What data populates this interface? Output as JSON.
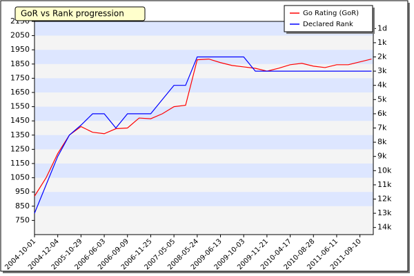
{
  "chart_data": {
    "type": "line",
    "title": "GoR vs Rank progression",
    "categories": [
      "2004-10-01",
      null,
      "2004-12-04",
      null,
      "2005-10-29",
      null,
      "2006-06-03",
      null,
      "2006-09-09",
      null,
      "2006-11-25",
      null,
      "2007-05-05",
      null,
      "2008-05-24",
      null,
      "2009-06-13",
      null,
      "2009-10-03",
      null,
      "2009-11-21",
      null,
      "2010-04-17",
      null,
      "2010-08-28",
      null,
      "2011-06-11",
      null,
      "2011-09-10",
      null
    ],
    "series": [
      {
        "name": "Go Rating (GoR)",
        "color": "#ff0000",
        "values": [
          920,
          1050,
          1220,
          1350,
          1410,
          1370,
          1360,
          1395,
          1400,
          1470,
          1465,
          1500,
          1550,
          1560,
          1880,
          1885,
          1860,
          1840,
          1830,
          1820,
          1800,
          1820,
          1845,
          1855,
          1835,
          1825,
          1845,
          1845,
          1865,
          1885
        ]
      },
      {
        "name": "Declared Rank",
        "color": "#0000ff",
        "axis": "y2",
        "values": [
          800,
          1000,
          1200,
          1350,
          1420,
          1500,
          1500,
          1400,
          1500,
          1500,
          1500,
          1600,
          1700,
          1700,
          1900,
          1900,
          1900,
          1900,
          1900,
          1800,
          1800,
          1800,
          1800,
          1800,
          1800,
          1800,
          1800,
          1800,
          1800,
          1800
        ]
      }
    ],
    "ylim": [
      650,
      2150
    ],
    "yticks": [
      750,
      850,
      950,
      1050,
      1150,
      1250,
      1350,
      1450,
      1550,
      1650,
      1750,
      1850,
      1950,
      2050,
      2150
    ],
    "y2lim": [
      650,
      2150
    ],
    "y2ticks": [
      {
        "value": 2100,
        "label": "1d"
      },
      {
        "value": 2000,
        "label": "1k"
      },
      {
        "value": 1900,
        "label": "2k"
      },
      {
        "value": 1800,
        "label": "3k"
      },
      {
        "value": 1700,
        "label": "4k"
      },
      {
        "value": 1600,
        "label": "5k"
      },
      {
        "value": 1500,
        "label": "6k"
      },
      {
        "value": 1400,
        "label": "7k"
      },
      {
        "value": 1300,
        "label": "8k"
      },
      {
        "value": 1200,
        "label": "9k"
      },
      {
        "value": 1100,
        "label": "10k"
      },
      {
        "value": 1000,
        "label": "11k"
      },
      {
        "value": 900,
        "label": "12k"
      },
      {
        "value": 800,
        "label": "13k"
      },
      {
        "value": 700,
        "label": "14k"
      }
    ],
    "grid": "bands",
    "band_colors": [
      "#dde6ff",
      "#f4f4f4"
    ],
    "legend": "top-right"
  }
}
